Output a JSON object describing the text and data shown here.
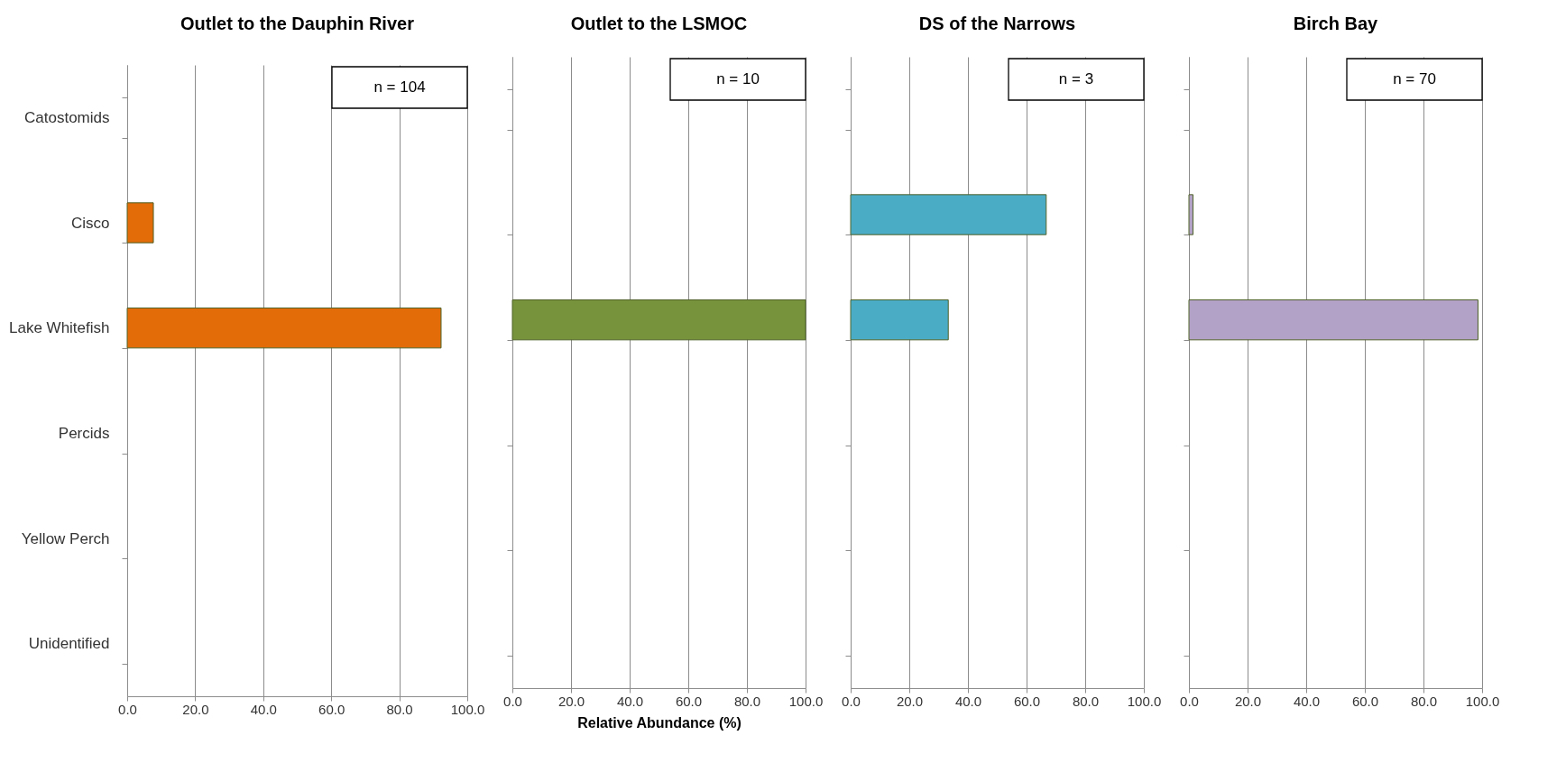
{
  "chart_data": [
    {
      "type": "bar",
      "orientation": "horizontal",
      "title": "Outlet to the Dauphin River",
      "categories": [
        "Catostomids",
        "Cisco",
        "Lake Whitefish",
        "Percids",
        "Yellow Perch",
        "Unidentified"
      ],
      "series": [
        {
          "color": "#e36c09",
          "values": [
            null,
            7.7,
            92.3,
            null,
            null,
            null
          ]
        }
      ],
      "xlim": [
        0,
        100
      ],
      "xticks": [
        {
          "value": 0,
          "label": "0.0"
        },
        {
          "value": 20,
          "label": "20.0"
        },
        {
          "value": 40,
          "label": "40.0"
        },
        {
          "value": 60,
          "label": "60.0"
        },
        {
          "value": 80,
          "label": "80.0"
        },
        {
          "value": 100,
          "label": "100.0"
        }
      ],
      "grid": "x",
      "annotations": [
        "n = 104"
      ]
    },
    {
      "type": "bar",
      "orientation": "horizontal",
      "title": "Outlet to the LSMOC",
      "xlabel": "Relative Abundance (%)",
      "categories": [
        null,
        null,
        null,
        null,
        null,
        null
      ],
      "series": [
        {
          "color": "#77933c",
          "values": [
            null,
            null,
            100,
            null,
            null,
            null
          ]
        }
      ],
      "xlim": [
        0,
        100
      ],
      "xticks": [
        {
          "value": 0,
          "label": "0.0"
        },
        {
          "value": 20,
          "label": "20.0"
        },
        {
          "value": 40,
          "label": "40.0"
        },
        {
          "value": 60,
          "label": "60.0"
        },
        {
          "value": 80,
          "label": "80.0"
        },
        {
          "value": 100,
          "label": "100.0"
        }
      ],
      "grid": "x",
      "annotations": [
        "n = 10"
      ],
      "tick_labels": "x"
    },
    {
      "type": "bar",
      "orientation": "horizontal",
      "title": "DS of the Narrows",
      "categories": [
        null,
        null,
        null,
        null,
        null,
        null
      ],
      "series": [
        {
          "color": "#4bacc6",
          "values": [
            null,
            66.7,
            33.3,
            null,
            null,
            null
          ]
        }
      ],
      "xlim": [
        0,
        100
      ],
      "xticks": [
        {
          "value": 0,
          "label": "0.0"
        },
        {
          "value": 20,
          "label": "20.0"
        },
        {
          "value": 40,
          "label": "40.0"
        },
        {
          "value": 60,
          "label": "60.0"
        },
        {
          "value": 80,
          "label": "80.0"
        },
        {
          "value": 100,
          "label": "100.0"
        }
      ],
      "grid": "x",
      "annotations": [
        "n = 3"
      ],
      "tick_labels": "x"
    },
    {
      "type": "bar",
      "orientation": "horizontal",
      "title": "Birch Bay",
      "categories": [
        null,
        null,
        null,
        null,
        null,
        null
      ],
      "series": [
        {
          "color": "#b3a2c7",
          "values": [
            null,
            1.4,
            98.6,
            null,
            null,
            null
          ]
        }
      ],
      "xlim": [
        0,
        100
      ],
      "xticks": [
        {
          "value": 0,
          "label": "0.0"
        },
        {
          "value": 20,
          "label": "20.0"
        },
        {
          "value": 40,
          "label": "40.0"
        },
        {
          "value": 60,
          "label": "60.0"
        },
        {
          "value": 80,
          "label": "80.0"
        },
        {
          "value": 100,
          "label": "100.0"
        }
      ],
      "grid": "x",
      "annotations": [
        "n = 70"
      ],
      "tick_labels": "x"
    }
  ]
}
